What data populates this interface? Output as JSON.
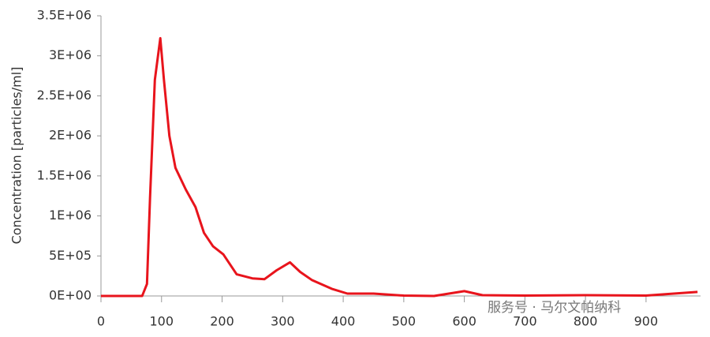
{
  "chart_data": {
    "type": "line",
    "ylabel": "Concentration [particles/ml]",
    "watermark": "服务号 · 马尔文帕纳科",
    "x": [
      0,
      60,
      68,
      76,
      81,
      89,
      98,
      104,
      113,
      123,
      140,
      156,
      170,
      185,
      202,
      224,
      250,
      270,
      290,
      312,
      329,
      348,
      381,
      407,
      450,
      500,
      550,
      600,
      630,
      700,
      800,
      900,
      985
    ],
    "series": [
      {
        "name": "Concentration",
        "color": "#e8141c",
        "values": [
          0,
          0,
          0,
          150000,
          1230000,
          2700000,
          3220000,
          2700000,
          2000000,
          1600000,
          1330000,
          1110000,
          790000,
          620000,
          520000,
          270000,
          220000,
          210000,
          320000,
          420000,
          300000,
          200000,
          90000,
          30000,
          30000,
          5000,
          0,
          60000,
          10000,
          5000,
          10000,
          5000,
          50000
        ]
      }
    ],
    "xlim": [
      0,
      990
    ],
    "xticks": [
      0,
      100,
      200,
      300,
      400,
      500,
      600,
      700,
      800,
      900
    ],
    "ylim": [
      0,
      3500000
    ],
    "yticks": [
      {
        "value": 0,
        "label": "0E+00"
      },
      {
        "value": 500000,
        "label": "5E+05"
      },
      {
        "value": 1000000,
        "label": "1E+06"
      },
      {
        "value": 1500000,
        "label": "1.5E+06"
      },
      {
        "value": 2000000,
        "label": "2E+06"
      },
      {
        "value": 2500000,
        "label": "2.5E+06"
      },
      {
        "value": 3000000,
        "label": "3E+06"
      },
      {
        "value": 3500000,
        "label": "3.5E+06"
      }
    ],
    "grid": false
  }
}
